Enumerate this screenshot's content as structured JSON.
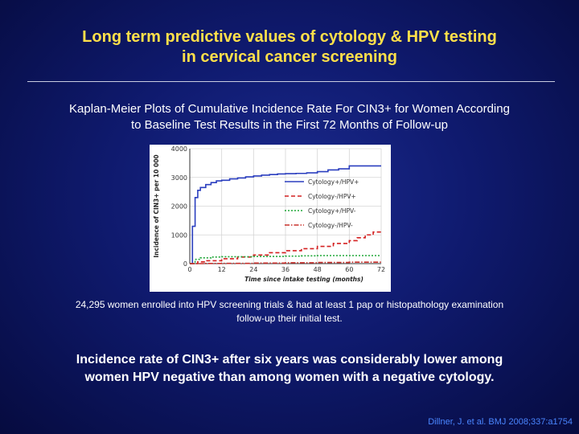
{
  "title": {
    "line1": "Long term predictive values of cytology & HPV testing",
    "line2": "in cervical cancer screening"
  },
  "subtitle": {
    "line1": "Kaplan-Meier Plots of Cumulative Incidence Rate For CIN3+ for Women According",
    "line2": "to Baseline Test Results in the First 72 Months of Follow-up"
  },
  "note": {
    "line1": "24,295 women enrolled into HPV screening trials & had at least 1 pap or histopathology examination",
    "line2": "follow-up their initial test."
  },
  "conclusion": {
    "line1": "Incidence rate of CIN3+ after six years was considerably lower among",
    "line2": "women HPV negative than among women with a negative cytology."
  },
  "citation": "Dillner, J. et al. BMJ 2008;337:a1754",
  "chart_data": {
    "type": "line",
    "title": "",
    "xlabel": "Time since intake testing (months)",
    "ylabel": "Incidence of CIN3+ per 10 000",
    "xlim": [
      0,
      72
    ],
    "ylim": [
      0,
      4000
    ],
    "x_ticks": [
      0,
      12,
      24,
      36,
      48,
      60,
      72
    ],
    "x_tick_labels": [
      "0",
      "12",
      "24",
      "36",
      "48",
      "60",
      "72"
    ],
    "y_ticks": [
      0,
      1000,
      2000,
      3000,
      4000
    ],
    "y_tick_labels": [
      "0",
      "1000",
      "2000",
      "3000",
      "4000"
    ],
    "grid": true,
    "legend_position": "right",
    "series": [
      {
        "name": "Cytology+/HPV+",
        "color": "#2b3fbf",
        "dash": "solid",
        "x": [
          0,
          1,
          2,
          3,
          4,
          6,
          8,
          10,
          12,
          15,
          18,
          21,
          24,
          27,
          30,
          33,
          36,
          40,
          44,
          48,
          52,
          56,
          60,
          63,
          66,
          69,
          72
        ],
        "y": [
          0,
          1300,
          2300,
          2550,
          2650,
          2750,
          2820,
          2880,
          2900,
          2950,
          2980,
          3020,
          3050,
          3080,
          3100,
          3120,
          3130,
          3140,
          3160,
          3200,
          3260,
          3300,
          3400,
          3400,
          3400,
          3400,
          3400
        ]
      },
      {
        "name": "Cytology-/HPV+",
        "color": "#d42020",
        "dash": "dashed",
        "x": [
          0,
          3,
          6,
          12,
          18,
          24,
          30,
          36,
          42,
          48,
          54,
          60,
          63,
          66,
          69,
          72
        ],
        "y": [
          0,
          60,
          100,
          170,
          230,
          300,
          380,
          450,
          520,
          600,
          700,
          800,
          900,
          1000,
          1100,
          1100
        ]
      },
      {
        "name": "Cytology+/HPV-",
        "color": "#22a83a",
        "dash": "dotted",
        "x": [
          0,
          2,
          4,
          8,
          12,
          24,
          36,
          42,
          48,
          60,
          72
        ],
        "y": [
          0,
          150,
          200,
          230,
          240,
          250,
          260,
          270,
          280,
          280,
          280
        ]
      },
      {
        "name": "Cytology-/HPV-",
        "color": "#c9302c",
        "dash": "dashdot",
        "x": [
          0,
          6,
          12,
          24,
          36,
          48,
          60,
          72
        ],
        "y": [
          0,
          5,
          10,
          20,
          30,
          40,
          50,
          60
        ]
      }
    ]
  }
}
